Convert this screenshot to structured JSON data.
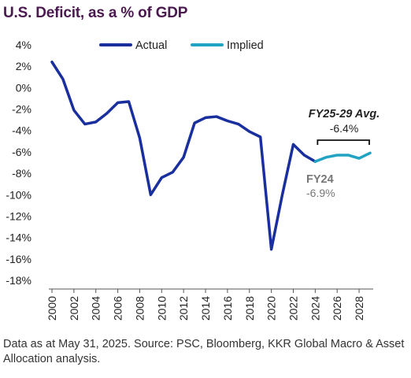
{
  "header": {
    "title": "U.S. Deficit, as a % of GDP"
  },
  "footnote": "Data as at May 31, 2025. Source: PSC, Bloomberg, KKR Global Macro & Asset Allocation analysis.",
  "colors": {
    "actual": "#1a2f9e",
    "implied": "#22a3c4",
    "text": "#222222",
    "annotation_gray": "#777777"
  },
  "chart_data": {
    "type": "line",
    "title": "U.S. Deficit, as a % of GDP",
    "xlabel": "",
    "ylabel": "",
    "xlim": [
      2000,
      2029
    ],
    "ylim": [
      -18,
      4
    ],
    "y_ticks": [
      4,
      2,
      0,
      -2,
      -4,
      -6,
      -8,
      -10,
      -12,
      -14,
      -16,
      -18
    ],
    "y_tick_labels": [
      "4%",
      "2%",
      "0%",
      "-2%",
      "-4%",
      "-6%",
      "-8%",
      "-10%",
      "-12%",
      "-14%",
      "-16%",
      "-18%"
    ],
    "x_ticks": [
      2000,
      2002,
      2004,
      2006,
      2008,
      2010,
      2012,
      2014,
      2016,
      2018,
      2020,
      2022,
      2024,
      2026,
      2028
    ],
    "x_tick_labels": [
      "2000",
      "2002",
      "2004",
      "2006",
      "2008",
      "2010",
      "2012",
      "2014",
      "2016",
      "2018",
      "2020",
      "2022",
      "2024",
      "2026",
      "2028"
    ],
    "grid": false,
    "legend": {
      "placement": "top",
      "entries": [
        "Actual",
        "Implied"
      ]
    },
    "series": [
      {
        "name": "Actual",
        "x": [
          2000,
          2001,
          2002,
          2003,
          2004,
          2005,
          2006,
          2007,
          2008,
          2009,
          2010,
          2011,
          2012,
          2013,
          2014,
          2015,
          2016,
          2017,
          2018,
          2019,
          2020,
          2021,
          2022,
          2023,
          2024
        ],
        "values": [
          2.4,
          0.8,
          -2.1,
          -3.4,
          -3.2,
          -2.4,
          -1.4,
          -1.3,
          -4.7,
          -10.0,
          -8.4,
          -7.9,
          -6.5,
          -3.3,
          -2.8,
          -2.7,
          -3.1,
          -3.4,
          -4.1,
          -4.6,
          -15.1,
          -10.0,
          -5.3,
          -6.3,
          -6.9
        ]
      },
      {
        "name": "Implied",
        "x": [
          2024,
          2025,
          2026,
          2027,
          2028,
          2029
        ],
        "values": [
          -6.9,
          -6.5,
          -6.3,
          -6.3,
          -6.6,
          -6.1
        ]
      }
    ],
    "annotations": [
      {
        "id": "fy25_29",
        "title": "FY25-29 Avg.",
        "value": "-6.4%",
        "x_from": 2024,
        "x_to": 2029
      },
      {
        "id": "fy24",
        "title": "FY24",
        "value": "-6.9%",
        "x": 2024
      }
    ]
  }
}
